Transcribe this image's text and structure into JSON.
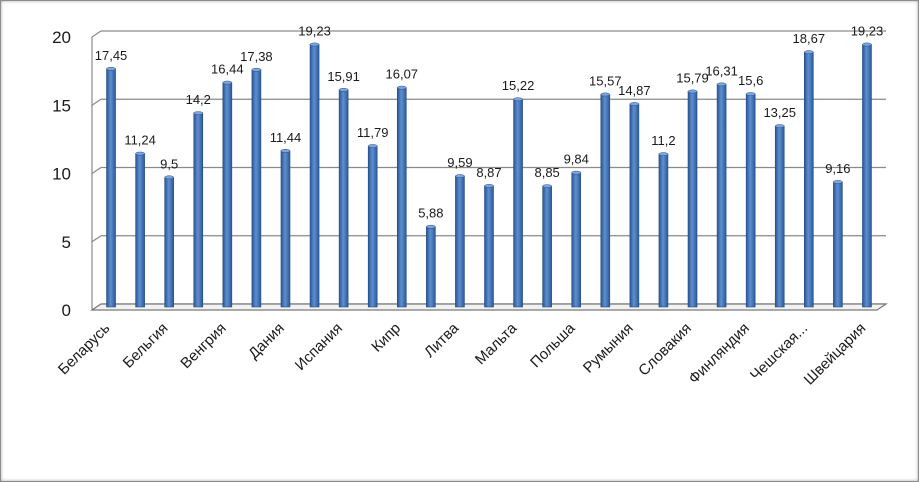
{
  "chart_data": {
    "type": "bar",
    "title": "",
    "xlabel": "",
    "ylabel": "",
    "ylim": [
      0,
      20
    ],
    "yticks": [
      0,
      5,
      10,
      15,
      20
    ],
    "grid": true,
    "legend": "none",
    "bar_color": "#3b6db0",
    "categories": [
      "Беларусь",
      "",
      "Бельгия",
      "",
      "Венгрия",
      "",
      "Дания",
      "",
      "Испания",
      "",
      "Кипр",
      "",
      "Литва",
      "",
      "Мальта",
      "",
      "Польша",
      "",
      "Румыния",
      "",
      "Словакия",
      "",
      "Финляндия",
      "",
      "Чешская...",
      "",
      "Швейцария"
    ],
    "values": [
      17.45,
      11.24,
      9.5,
      14.2,
      16.44,
      17.38,
      11.44,
      19.23,
      15.91,
      11.79,
      16.07,
      5.88,
      9.59,
      8.87,
      15.22,
      8.85,
      9.84,
      15.57,
      14.87,
      11.2,
      15.79,
      16.31,
      15.6,
      13.25,
      18.67,
      9.16,
      19.23
    ],
    "data_labels": [
      "17,45",
      "11,24",
      "9,5",
      "14,2",
      "16,44",
      "17,38",
      "11,44",
      "19,23",
      "15,91",
      "11,79",
      "16,07",
      "5,88",
      "9,59",
      "8,87",
      "15,22",
      "8,85",
      "9,84",
      "15,57",
      "14,87",
      "11,2",
      "15,79",
      "16,31",
      "15,6",
      "13,25",
      "18,67",
      "9,16",
      "19,23"
    ]
  }
}
